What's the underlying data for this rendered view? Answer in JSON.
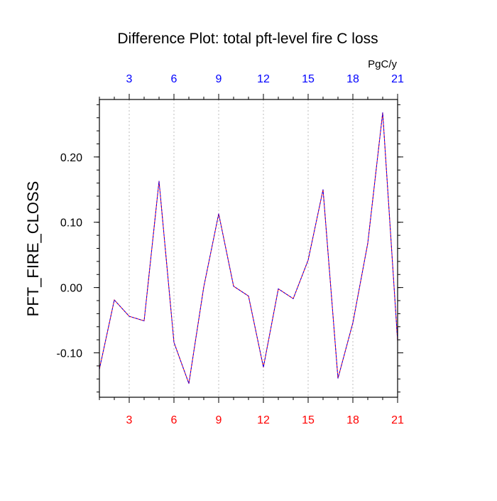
{
  "chart_data": {
    "type": "line",
    "title": "Difference Plot: total pft-level fire C loss",
    "ylabel": "PFT_FIRE_CLOSS",
    "units": "PgC/y",
    "xlim": [
      1,
      21
    ],
    "ylim": [
      -0.168,
      0.288
    ],
    "x_ticks": [
      3,
      6,
      9,
      12,
      15,
      18,
      21
    ],
    "y_ticks": [
      -0.1,
      0.0,
      0.1,
      0.2
    ],
    "y_tick_labels": [
      "-0.10",
      "0.00",
      "0.10",
      "0.20"
    ],
    "x_tick_labels_top": [
      "3",
      "6",
      "9",
      "12",
      "15",
      "18",
      "21"
    ],
    "x_tick_labels_bottom": [
      "3",
      "6",
      "9",
      "12",
      "15",
      "18",
      "21"
    ],
    "grid": "vertical dotted at major x ticks",
    "colors": {
      "top_axis_labels": "#0000ff",
      "bottom_axis_labels": "#ff0000",
      "series_solid": "#ff0000",
      "series_dashed": "#0000ff"
    },
    "series": [
      {
        "name": "difference",
        "x": [
          1,
          2,
          3,
          4,
          5,
          6,
          7,
          8,
          9,
          10,
          11,
          12,
          13,
          14,
          15,
          16,
          17,
          18,
          19,
          20,
          21
        ],
        "values": [
          -0.125,
          -0.019,
          -0.044,
          -0.051,
          0.163,
          -0.084,
          -0.147,
          0.001,
          0.113,
          0.002,
          -0.013,
          -0.122,
          -0.002,
          -0.017,
          0.042,
          0.15,
          -0.139,
          -0.054,
          0.068,
          0.268,
          -0.082
        ]
      }
    ]
  }
}
